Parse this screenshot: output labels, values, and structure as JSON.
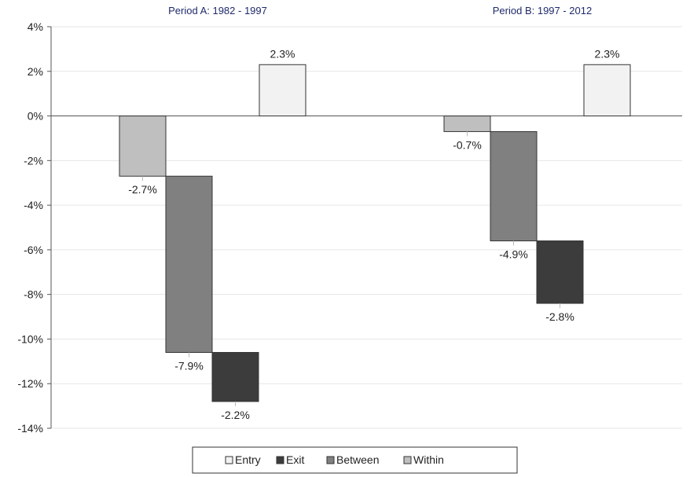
{
  "chart_data": {
    "type": "bar",
    "subtype": "waterfall",
    "groups": [
      {
        "title": "Period A: 1982 - 1997",
        "bars": [
          {
            "series": "Within",
            "start": 0,
            "end": -2.7,
            "label": "-2.7%"
          },
          {
            "series": "Between",
            "start": -2.7,
            "end": -10.6,
            "label": "-7.9%"
          },
          {
            "series": "Exit",
            "start": -10.6,
            "end": -12.8,
            "label": "-2.2%"
          },
          {
            "series": "Entry",
            "start": 0,
            "end": 2.3,
            "label": "2.3%"
          }
        ]
      },
      {
        "title": "Period B: 1997 - 2012",
        "bars": [
          {
            "series": "Within",
            "start": 0,
            "end": -0.7,
            "label": "-0.7%"
          },
          {
            "series": "Between",
            "start": -0.7,
            "end": -5.6,
            "label": "-4.9%"
          },
          {
            "series": "Exit",
            "start": -5.6,
            "end": -8.4,
            "label": "-2.8%"
          },
          {
            "series": "Entry",
            "start": 0,
            "end": 2.3,
            "label": "2.3%"
          }
        ]
      }
    ],
    "ylim": [
      -14,
      4
    ],
    "yticks": [
      "4%",
      "2%",
      "0%",
      "-2%",
      "-4%",
      "-6%",
      "-8%",
      "-10%",
      "-12%",
      "-14%"
    ],
    "ytick_values": [
      4,
      2,
      0,
      -2,
      -4,
      -6,
      -8,
      -10,
      -12,
      -14
    ],
    "grid": true,
    "legend_position": "bottom",
    "legend": [
      {
        "name": "Entry",
        "color": "#f2f2f2"
      },
      {
        "name": "Exit",
        "color": "#3c3c3c"
      },
      {
        "name": "Between",
        "color": "#808080"
      },
      {
        "name": "Within",
        "color": "#bfbfbf"
      }
    ],
    "colors": {
      "Entry": "#f2f2f2",
      "Exit": "#3c3c3c",
      "Between": "#808080",
      "Within": "#bfbfbf"
    }
  }
}
